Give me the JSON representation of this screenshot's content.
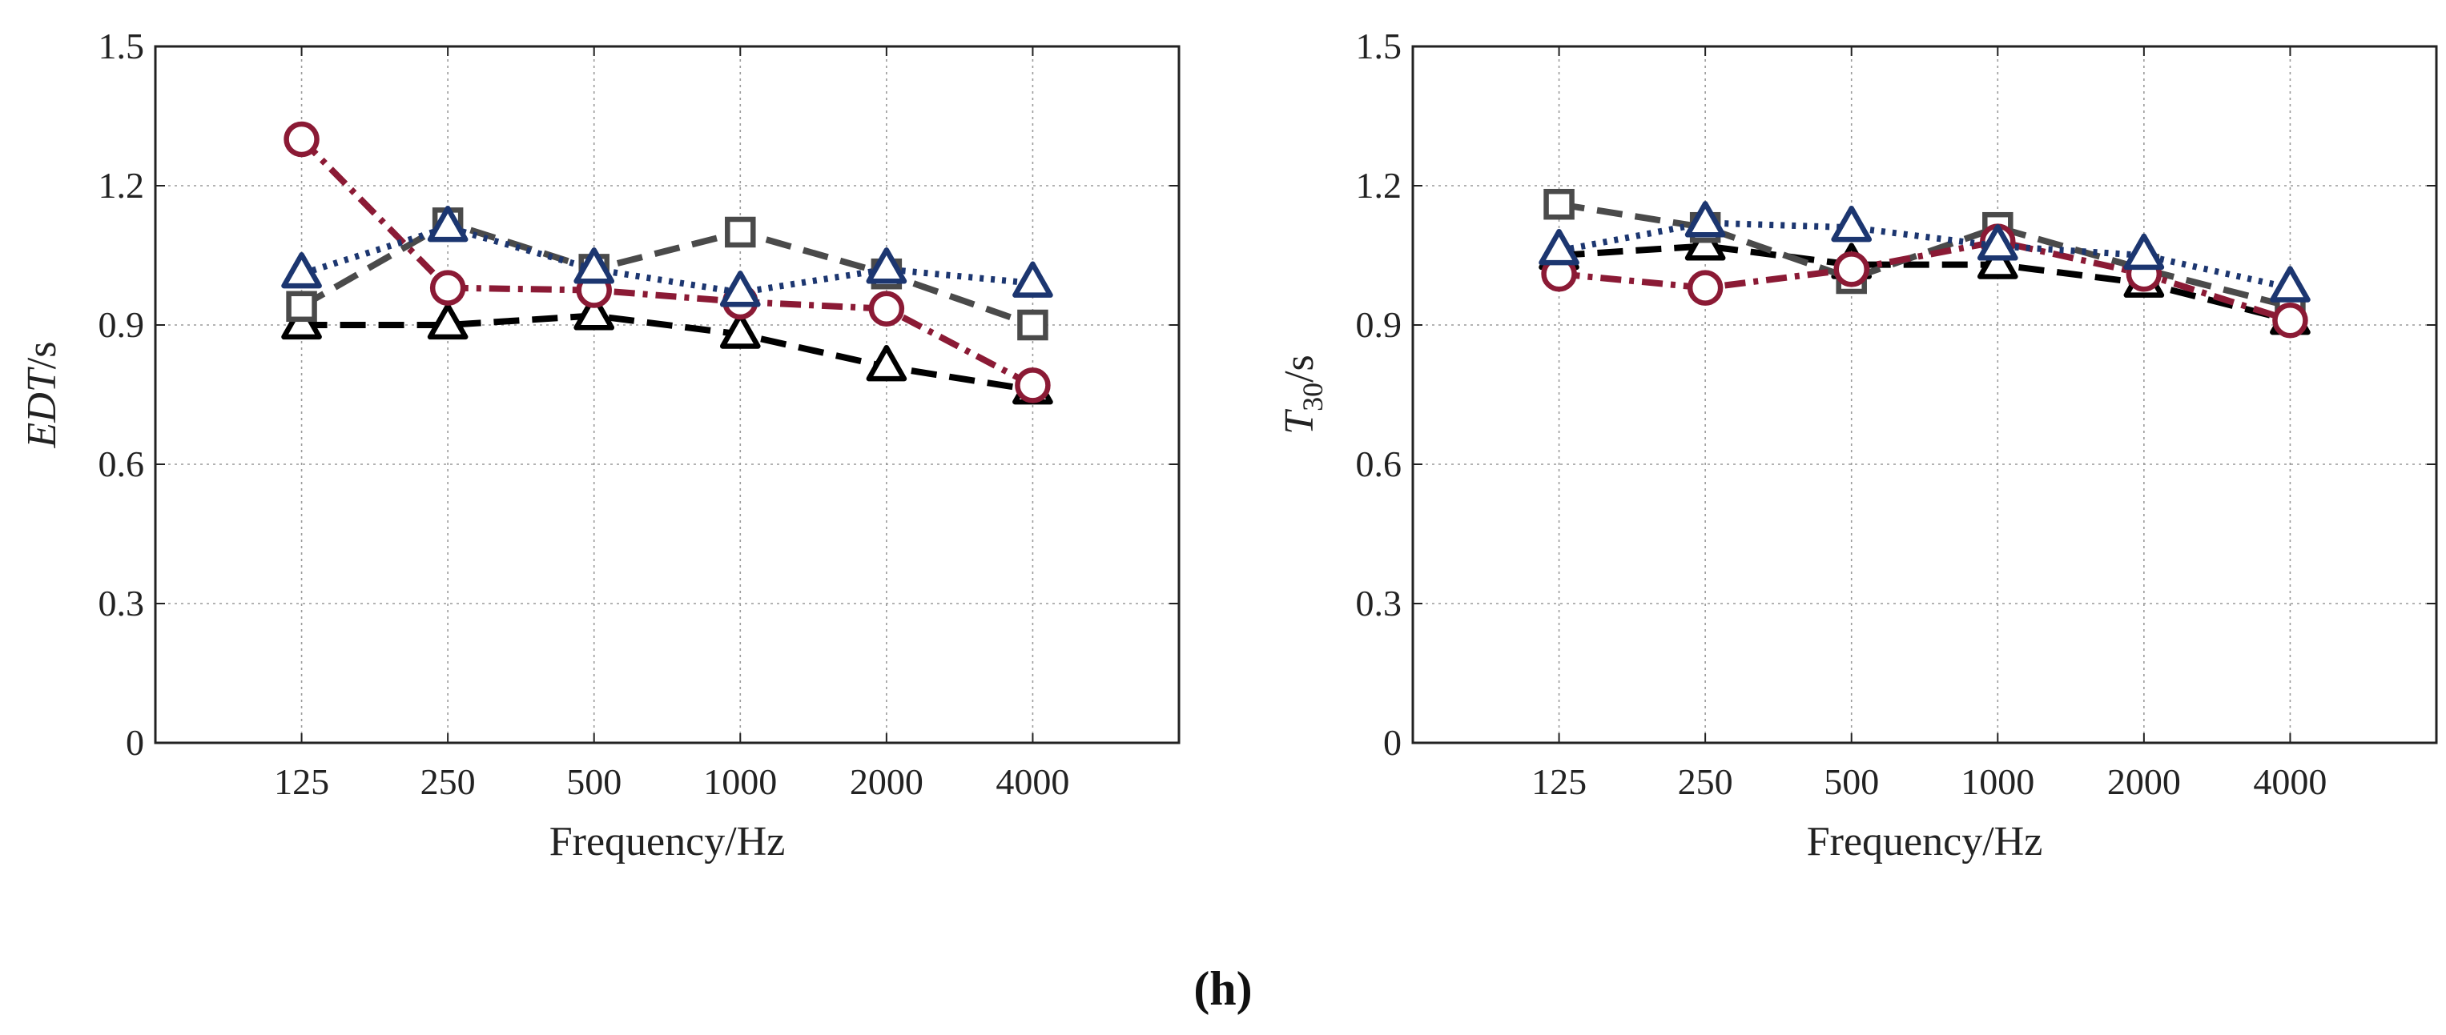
{
  "panel_label": "(h)",
  "colors": {
    "black": "#000000",
    "gray": "#4a4a4a",
    "crimson": "#8b1a35",
    "navy": "#1c3670",
    "grid": "#9a9a9a"
  },
  "chart_data": [
    {
      "type": "line",
      "ylabel_italic": "EDT",
      "ylabel_unit": "/s",
      "xlabel": "Frequency/Hz",
      "categories": [
        "125",
        "250",
        "500",
        "1000",
        "2000",
        "4000"
      ],
      "yticks": [
        "0",
        "0.3",
        "0.6",
        "0.9",
        "1.2",
        "1.5"
      ],
      "ylim": [
        0,
        1.5
      ],
      "grid": true,
      "series": [
        {
          "name": "black dashed triangles",
          "color": "#000000",
          "dash": "32,16",
          "marker": "triangle",
          "values": [
            0.9,
            0.9,
            0.92,
            0.88,
            0.81,
            0.76
          ]
        },
        {
          "name": "gray dashed squares",
          "color": "#4a4a4a",
          "dash": "32,16",
          "marker": "square",
          "values": [
            0.94,
            1.12,
            1.02,
            1.1,
            1.01,
            0.9
          ]
        },
        {
          "name": "crimson dash-dot circles",
          "color": "#8b1a35",
          "dash": "26,10,6,10",
          "marker": "circle",
          "values": [
            1.3,
            0.98,
            0.975,
            0.95,
            0.935,
            0.77
          ]
        },
        {
          "name": "navy dotted triangles",
          "color": "#1c3670",
          "dash": "5,9",
          "marker": "triangle",
          "values": [
            1.01,
            1.11,
            1.02,
            0.97,
            1.02,
            0.99
          ]
        }
      ]
    },
    {
      "type": "line",
      "ylabel_italic": "T",
      "ylabel_sub": "30",
      "ylabel_unit": "/s",
      "xlabel": "Frequency/Hz",
      "categories": [
        "125",
        "250",
        "500",
        "1000",
        "2000",
        "4000"
      ],
      "yticks": [
        "0",
        "0.3",
        "0.6",
        "0.9",
        "1.2",
        "1.5"
      ],
      "ylim": [
        0,
        1.5
      ],
      "grid": true,
      "series": [
        {
          "name": "black dashed triangles",
          "color": "#000000",
          "dash": "32,16",
          "marker": "triangle",
          "values": [
            1.05,
            1.07,
            1.03,
            1.03,
            0.99,
            0.91
          ]
        },
        {
          "name": "gray dashed squares",
          "color": "#4a4a4a",
          "dash": "32,16",
          "marker": "square",
          "values": [
            1.16,
            1.11,
            1.0,
            1.11,
            1.02,
            0.94
          ]
        },
        {
          "name": "crimson dash-dot circles",
          "color": "#8b1a35",
          "dash": "26,10,6,10",
          "marker": "circle",
          "values": [
            1.01,
            0.98,
            1.02,
            1.08,
            1.01,
            0.91
          ]
        },
        {
          "name": "navy dotted triangles",
          "color": "#1c3670",
          "dash": "5,9",
          "marker": "triangle",
          "values": [
            1.06,
            1.12,
            1.11,
            1.07,
            1.05,
            0.98
          ]
        }
      ]
    }
  ]
}
